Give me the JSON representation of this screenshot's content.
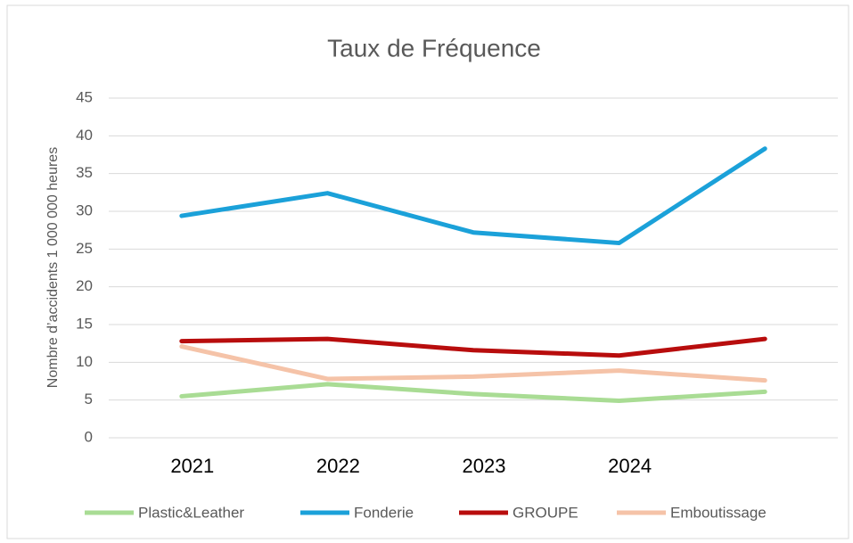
{
  "chart_data": {
    "type": "line",
    "title": "Taux de Fréquence",
    "y_label": "Nombre d’accidents 1 000 000 heures",
    "categories": [
      "2021",
      "2022",
      "2023",
      "2024",
      null
    ],
    "series": [
      {
        "name": "Plastic&Leather",
        "color": "#a9dc94",
        "values": [
          5.5,
          7.1,
          5.8,
          4.9,
          6.1
        ]
      },
      {
        "name": "Fonderie",
        "color": "#1ba1d9",
        "values": [
          29.4,
          32.4,
          27.2,
          25.8,
          38.3
        ]
      },
      {
        "name": "GROUPE",
        "color": "#b80d0d",
        "values": [
          12.8,
          13.1,
          11.6,
          10.9,
          13.1
        ]
      },
      {
        "name": "Emboutissage",
        "color": "#f5c3a8",
        "values": [
          12.1,
          7.8,
          8.1,
          8.9,
          7.6
        ]
      }
    ],
    "ylim": [
      0,
      45
    ],
    "yticks": [
      0,
      5,
      10,
      15,
      20,
      25,
      30,
      35,
      40,
      45
    ],
    "grid": true
  }
}
